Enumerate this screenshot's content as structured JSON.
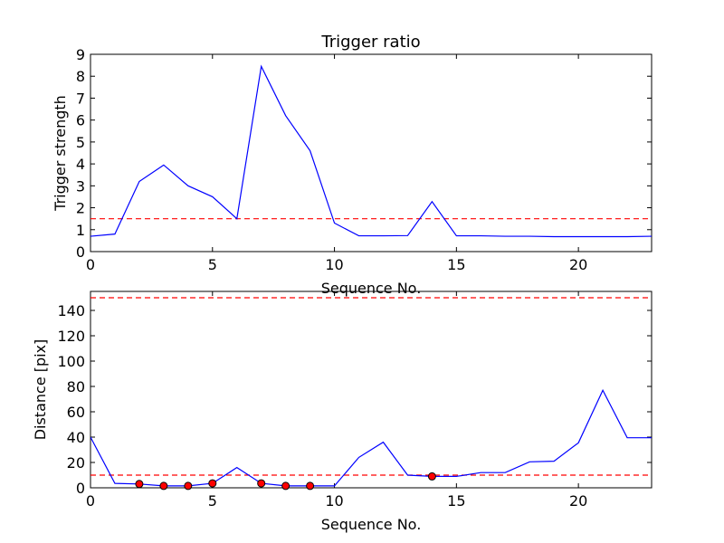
{
  "figure_title": "Trigger ratio",
  "chart_data": [
    {
      "type": "line",
      "title": "Trigger ratio",
      "xlabel": "Sequence No.",
      "ylabel": "Trigger strength",
      "xlim": [
        0,
        23
      ],
      "ylim": [
        0,
        9
      ],
      "xticks": [
        0,
        5,
        10,
        15,
        20
      ],
      "yticks": [
        0,
        1,
        2,
        3,
        4,
        5,
        6,
        7,
        8,
        9
      ],
      "grid": false,
      "series": [
        {
          "color": "#0000ff",
          "style": "solid",
          "x": [
            0,
            1,
            2,
            3,
            4,
            5,
            6,
            7,
            8,
            9,
            10,
            11,
            12,
            13,
            14,
            15,
            16,
            17,
            18,
            19,
            20,
            21,
            22,
            23
          ],
          "y": [
            0.7,
            0.8,
            3.2,
            3.95,
            3.0,
            2.5,
            1.5,
            8.45,
            6.2,
            4.6,
            1.3,
            0.72,
            0.72,
            0.73,
            2.28,
            0.72,
            0.72,
            0.7,
            0.7,
            0.68,
            0.68,
            0.68,
            0.68,
            0.7
          ]
        }
      ],
      "hlines": [
        {
          "y": 1.5,
          "color": "#ff0000",
          "style": "dashed"
        }
      ]
    },
    {
      "type": "line",
      "title": "",
      "xlabel": "Sequence No.",
      "ylabel": "Distance [pix]",
      "xlim": [
        0,
        23
      ],
      "ylim": [
        0,
        155
      ],
      "xticks": [
        0,
        5,
        10,
        15,
        20
      ],
      "yticks": [
        0,
        20,
        40,
        60,
        80,
        100,
        120,
        140
      ],
      "grid": false,
      "series": [
        {
          "color": "#0000ff",
          "style": "solid",
          "x": [
            0,
            1,
            2,
            3,
            4,
            5,
            6,
            7,
            8,
            9,
            10,
            11,
            12,
            13,
            14,
            15,
            16,
            17,
            18,
            19,
            20,
            21,
            22,
            23
          ],
          "y": [
            40,
            3.5,
            3,
            1.5,
            1.5,
            3.5,
            16,
            3.5,
            1.5,
            1.5,
            1.5,
            24,
            36,
            10,
            9,
            9,
            12,
            12,
            20.5,
            21,
            35.5,
            77,
            39.5,
            39.5
          ]
        }
      ],
      "markers": {
        "color": "#ff0000",
        "x": [
          2,
          3,
          4,
          5,
          7,
          8,
          9,
          14
        ],
        "y": [
          3,
          1.5,
          1.5,
          3.5,
          3.5,
          1.5,
          1.5,
          9
        ]
      },
      "hlines": [
        {
          "y": 150,
          "color": "#ff0000",
          "style": "dashed"
        },
        {
          "y": 10,
          "color": "#ff0000",
          "style": "dashed"
        }
      ]
    }
  ]
}
